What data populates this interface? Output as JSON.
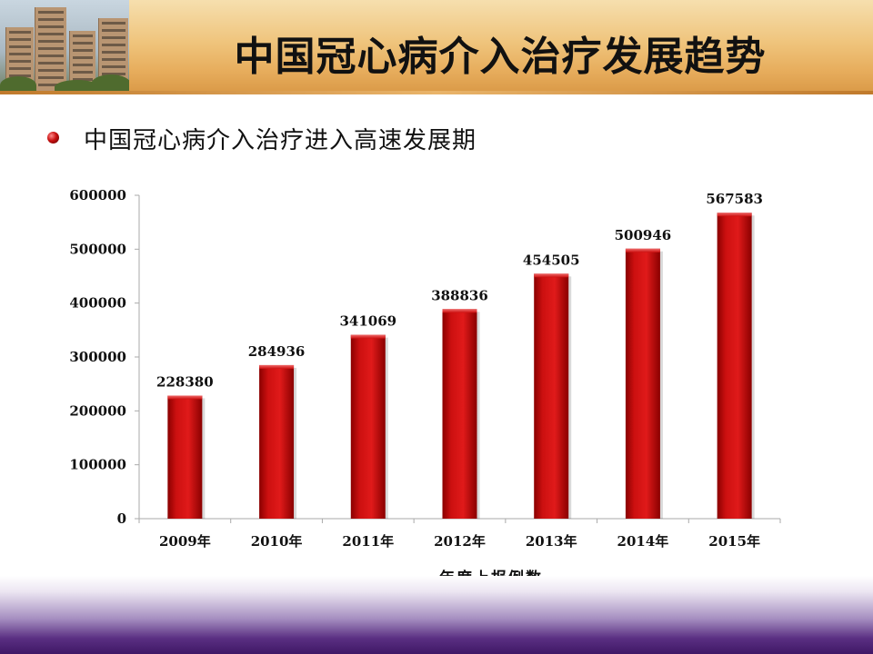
{
  "title": "中国冠心病介入治疗发展趋势",
  "subtitle": "中国冠心病介入治疗进入高速发展期",
  "header_image": "hospital-building-photo",
  "bullet_icon": "red-sphere-bullet",
  "colors": {
    "bar": "#cc1010",
    "bar_dark": "#8a0000",
    "axis": "#aaaaaa",
    "text": "#111111"
  },
  "chart_data": {
    "type": "bar",
    "categories": [
      "2009年",
      "2010年",
      "2011年",
      "2012年",
      "2013年",
      "2014年",
      "2015年"
    ],
    "series": [
      {
        "name": "年度上报例数",
        "values": [
          228380,
          284936,
          341069,
          388836,
          454505,
          500946,
          567583
        ]
      }
    ],
    "yticks": [
      0,
      100000,
      200000,
      300000,
      400000,
      500000,
      600000
    ],
    "ylim": [
      0,
      600000
    ],
    "xlabel": "年度上报例数",
    "ylabel": "",
    "data_labels": true,
    "grid": false
  }
}
